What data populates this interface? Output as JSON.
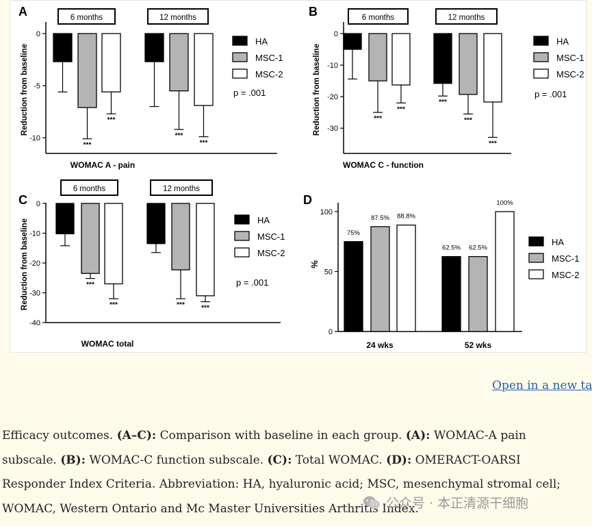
{
  "figure": {
    "link_text": "Open in a new tab",
    "caption": [
      {
        "t": "Efficacy outcomes. ",
        "b": false
      },
      {
        "t": "(A–C):",
        "b": true
      },
      {
        "t": " Comparison with baseline in each group. ",
        "b": false
      },
      {
        "t": "(A):",
        "b": true
      },
      {
        "t": " WOMAC-A pain subscale. ",
        "b": false
      },
      {
        "t": "(B):",
        "b": true
      },
      {
        "t": " WOMAC-C function subscale. ",
        "b": false
      },
      {
        "t": "(C):",
        "b": true
      },
      {
        "t": " Total WOMAC. ",
        "b": false
      },
      {
        "t": "(D):",
        "b": true
      },
      {
        "t": " OMERACT-OARSI Responder Index Criteria. Abbreviation: HA, hyaluronic acid; MSC, mesenchymal stromal cell; WOMAC, Western Ontario and Mc Master Universities Arthritis Index.",
        "b": false
      }
    ],
    "watermark": "公众号 · 本正清源干细胞",
    "watermark_icon": "wechat-icon"
  },
  "series_colors": {
    "HA": "#000000",
    "MSC-1": "#b4b4b4",
    "MSC-2": "#ffffff"
  },
  "chart_data": [
    {
      "panel": "A",
      "type": "bar",
      "xlabel": "WOMAC A - pain",
      "ylabel": "Reduction from baseline",
      "ylim": [
        -11.5,
        0
      ],
      "yticks": [
        0,
        -5,
        -10
      ],
      "ytick_labels": [
        "0",
        "-5",
        "-10"
      ],
      "groups": [
        "6 months",
        "12 months"
      ],
      "series": [
        {
          "name": "HA",
          "values": [
            -2.7,
            -2.7
          ],
          "errors": [
            2.9,
            4.3
          ],
          "sig": [
            "",
            ""
          ]
        },
        {
          "name": "MSC-1",
          "values": [
            -7.1,
            -5.5
          ],
          "errors": [
            3.0,
            3.7
          ],
          "sig": [
            "***",
            "***"
          ]
        },
        {
          "name": "MSC-2",
          "values": [
            -5.6,
            -6.9
          ],
          "errors": [
            2.1,
            3.0
          ],
          "sig": [
            "***",
            "***"
          ]
        }
      ],
      "annotation": "p = .001"
    },
    {
      "panel": "B",
      "type": "bar",
      "xlabel": "WOMAC C - function",
      "ylabel": "Reduction from baseline",
      "ylim": [
        -38,
        0
      ],
      "yticks": [
        0,
        -10,
        -20,
        -30
      ],
      "ytick_labels": [
        "0",
        "-10",
        "-20",
        "-30"
      ],
      "groups": [
        "6 months",
        "12 months"
      ],
      "series": [
        {
          "name": "HA",
          "values": [
            -5.0,
            -15.8
          ],
          "errors": [
            9.4,
            4.0
          ],
          "sig": [
            "",
            "***"
          ]
        },
        {
          "name": "MSC-1",
          "values": [
            -15.0,
            -19.3
          ],
          "errors": [
            10.0,
            6.2
          ],
          "sig": [
            "***",
            "***"
          ]
        },
        {
          "name": "MSC-2",
          "values": [
            -16.3,
            -21.7
          ],
          "errors": [
            5.7,
            11.2
          ],
          "sig": [
            "***",
            "***"
          ]
        }
      ],
      "annotation": "p = .001"
    },
    {
      "panel": "C",
      "type": "bar",
      "xlabel": "WOMAC total",
      "ylabel": "Reduction from baseline",
      "ylim": [
        -40,
        0
      ],
      "yticks": [
        0,
        -10,
        -20,
        -30,
        -40
      ],
      "ytick_labels": [
        "0",
        "-10",
        "-20",
        "-30",
        "-40"
      ],
      "groups": [
        "6 months",
        "12 months"
      ],
      "series": [
        {
          "name": "HA",
          "values": [
            -10.2,
            -13.5
          ],
          "errors": [
            4.0,
            3.0
          ],
          "sig": [
            "",
            ""
          ]
        },
        {
          "name": "MSC-1",
          "values": [
            -23.5,
            -22.3
          ],
          "errors": [
            1.7,
            9.7
          ],
          "sig": [
            "***",
            "***"
          ]
        },
        {
          "name": "MSC-2",
          "values": [
            -27.0,
            -31.0
          ],
          "errors": [
            5.0,
            2.0
          ],
          "sig": [
            "***",
            "***"
          ]
        }
      ],
      "annotation": "p = .001"
    },
    {
      "panel": "D",
      "type": "bar",
      "ylabel": "%",
      "ylim": [
        0,
        100
      ],
      "yticks": [
        0,
        50,
        100
      ],
      "ytick_labels": [
        "0",
        "50",
        "100"
      ],
      "categories": [
        "24 wks",
        "52 wks"
      ],
      "series": [
        {
          "name": "HA",
          "values": [
            75,
            62.5
          ],
          "labels": [
            "75%",
            "62.5%"
          ]
        },
        {
          "name": "MSC-1",
          "values": [
            87.5,
            62.5
          ],
          "labels": [
            "87.5%",
            "62.5%"
          ]
        },
        {
          "name": "MSC-2",
          "values": [
            88.8,
            100
          ],
          "labels": [
            "88.8%",
            "100%"
          ]
        }
      ]
    }
  ]
}
